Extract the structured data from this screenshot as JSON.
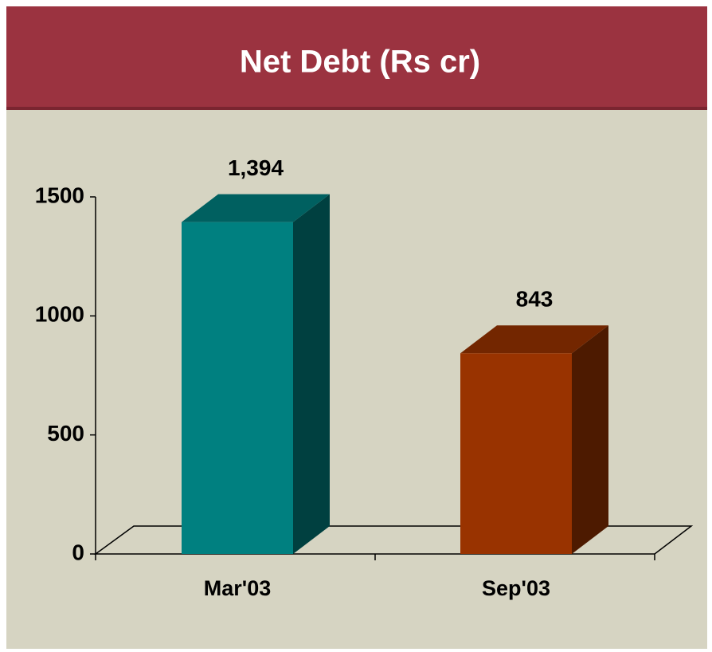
{
  "chart_data": {
    "type": "bar3d",
    "title": "Net Debt (Rs cr)",
    "categories": [
      "Mar'03",
      "Sep'03"
    ],
    "values": [
      1394,
      843
    ],
    "value_labels": [
      "1,394",
      "843"
    ],
    "colors": [
      "#008080",
      "#993300"
    ],
    "ylim": [
      0,
      1500
    ],
    "yticks": [
      0,
      500,
      1000,
      1500
    ],
    "grid": false
  }
}
